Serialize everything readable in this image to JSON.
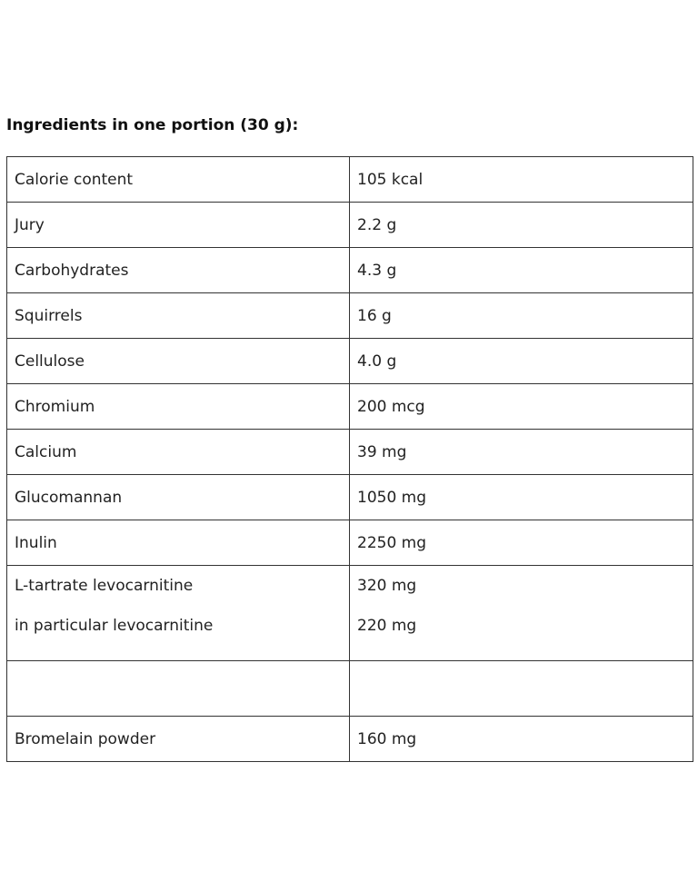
{
  "title": "Ingredients in one portion (30 g):",
  "rows": [
    [
      "Calorie content",
      "105 kcal"
    ],
    [
      "Jury",
      "2.2 g"
    ],
    [
      "Carbohydrates",
      "4.3 g"
    ],
    [
      "Squirrels",
      "16 g"
    ],
    [
      "Cellulose",
      "4.0 g"
    ],
    [
      "Chromium",
      "200 mcg"
    ],
    [
      "Calcium",
      "39 mg"
    ],
    [
      "Glucomannan",
      "1050 mg"
    ],
    [
      "Inulin",
      "2250 mg"
    ]
  ],
  "multi_row": {
    "labels": [
      "L-tartrate levocarnitine",
      "in particular levocarnitine"
    ],
    "amounts": [
      "320 mg",
      "220 mg"
    ]
  },
  "last_row": [
    "Bromelain powder",
    "160 mg"
  ]
}
